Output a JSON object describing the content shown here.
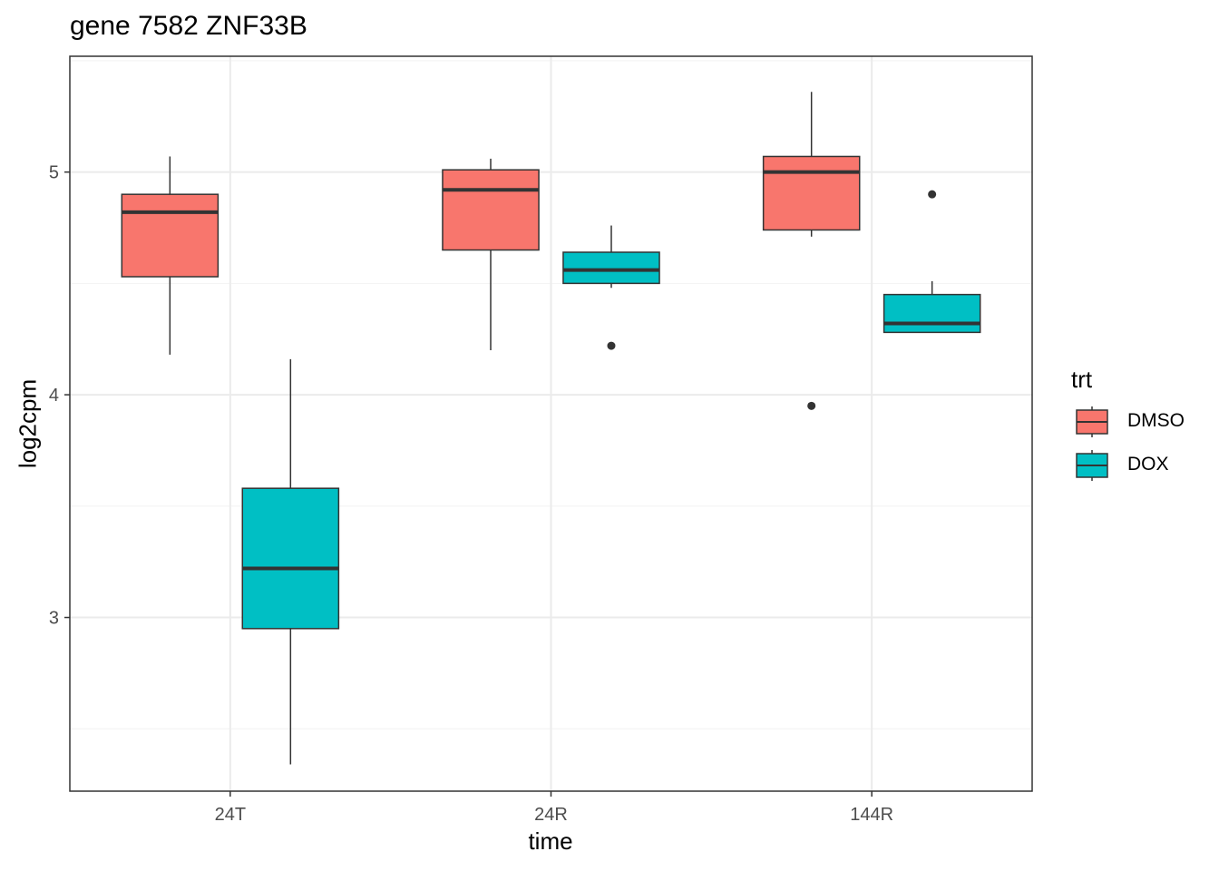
{
  "chart_data": {
    "type": "boxplot",
    "title": "gene 7582 ZNF33B",
    "xlabel": "time",
    "ylabel": "log2cpm",
    "categories": [
      "24T",
      "24R",
      "144R"
    ],
    "ylim": [
      2.22,
      5.52
    ],
    "yticks": [
      3,
      4,
      5
    ],
    "grid": true,
    "legend": {
      "title": "trt",
      "position": "right"
    },
    "series": [
      {
        "name": "DMSO",
        "color": "#F8766D",
        "boxes": [
          {
            "category": "24T",
            "whisker_low": 4.18,
            "q1": 4.53,
            "median": 4.82,
            "q3": 4.9,
            "whisker_high": 5.07,
            "outliers": []
          },
          {
            "category": "24R",
            "whisker_low": 4.2,
            "q1": 4.65,
            "median": 4.92,
            "q3": 5.01,
            "whisker_high": 5.06,
            "outliers": []
          },
          {
            "category": "144R",
            "whisker_low": 4.71,
            "q1": 4.74,
            "median": 5.0,
            "q3": 5.07,
            "whisker_high": 5.36,
            "outliers": [
              3.95
            ]
          }
        ]
      },
      {
        "name": "DOX",
        "color": "#00BFC4",
        "boxes": [
          {
            "category": "24T",
            "whisker_low": 2.34,
            "q1": 2.95,
            "median": 3.22,
            "q3": 3.58,
            "whisker_high": 4.16,
            "outliers": []
          },
          {
            "category": "24R",
            "whisker_low": 4.48,
            "q1": 4.5,
            "median": 4.56,
            "q3": 4.64,
            "whisker_high": 4.76,
            "outliers": [
              4.22
            ]
          },
          {
            "category": "144R",
            "whisker_low": 4.28,
            "q1": 4.28,
            "median": 4.32,
            "q3": 4.45,
            "whisker_high": 4.51,
            "outliers": [
              4.9
            ]
          }
        ]
      }
    ]
  }
}
